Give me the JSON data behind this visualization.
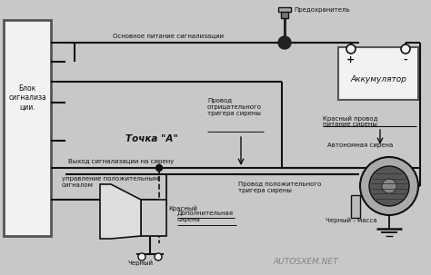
{
  "bg_color": "#c8c8c8",
  "box_color": "#f2f2f2",
  "line_color": "#111111",
  "texts": {
    "blok": "Блок\nсигнализа\nции.",
    "pred": "Предохранитель",
    "akk": "Аккумулятор",
    "akk_plus": "+",
    "akk_minus": "-",
    "osnov": "Основное питание сигнализации",
    "tochka": "Точка \"А\"",
    "provod_neg": "Провод\nотрицательного\nтригера сирены",
    "provod_pos": "Провод положительного\nтригера сирены",
    "krasniy_provod": "Красный провод\nпитание сирены",
    "avt_sirena": "Автономная сирена",
    "vyhod": "Выход сигнализации на сирену",
    "upravlenie": "управление положительным\nсигналом",
    "krasniy": "Красный",
    "cherniy": "Черный",
    "dop_sirena": "Дополнительная\nсирена",
    "cherniy_massa": "Черный - масса",
    "watermark": "AUTOSXEM.NET"
  },
  "fs": 5.0,
  "fs_tochka": 7.5,
  "fs_wm": 6.5
}
